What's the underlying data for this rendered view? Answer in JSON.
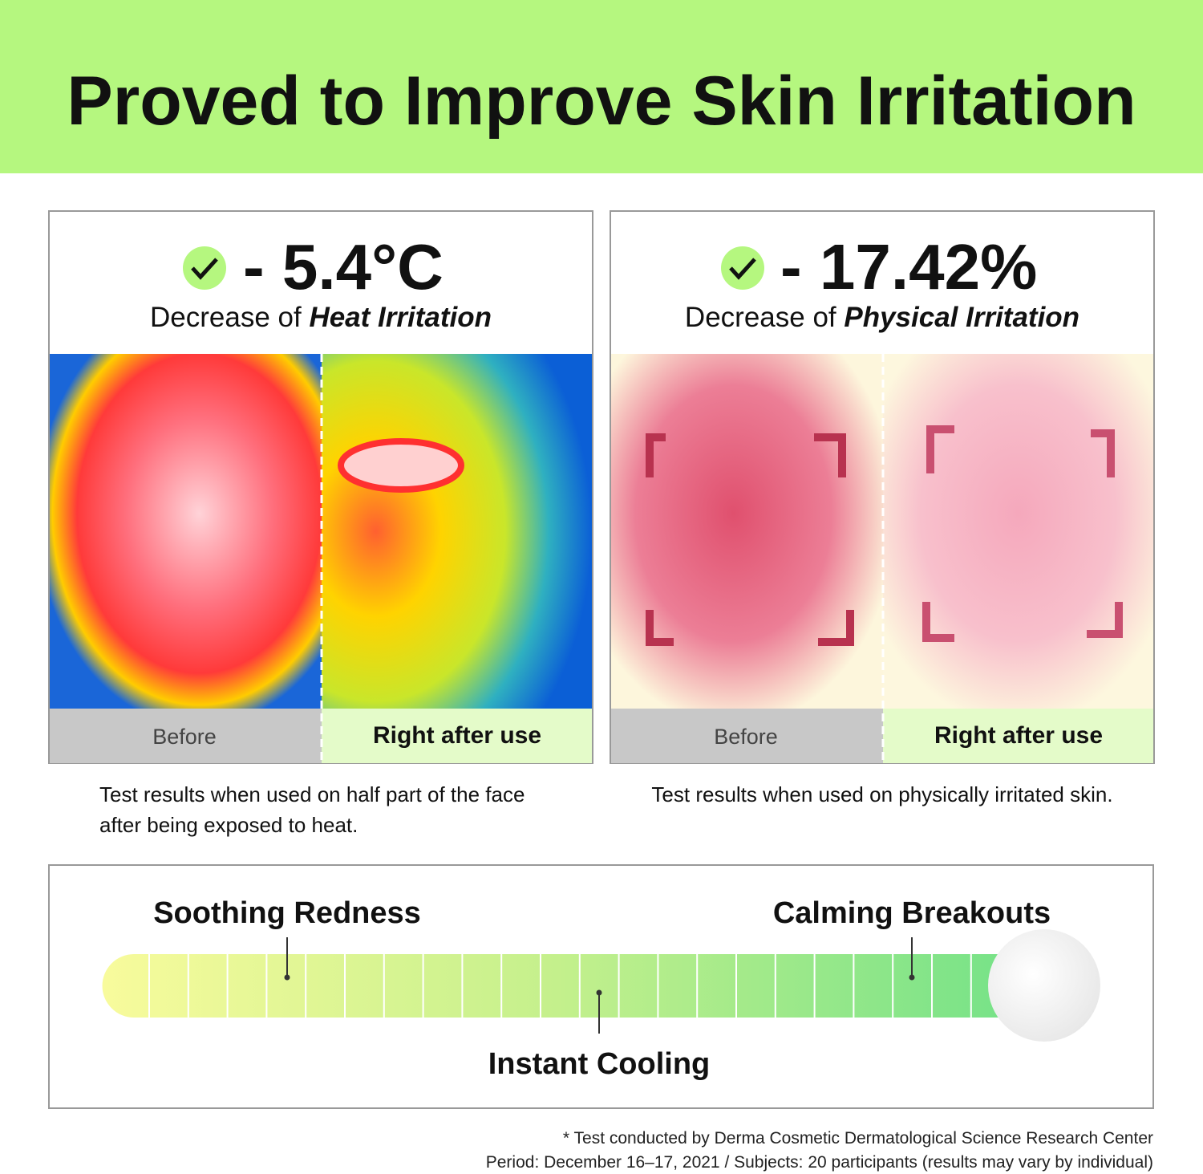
{
  "header": {
    "title": "Proved to Improve Skin Irritation"
  },
  "panels": [
    {
      "stat": "- 5.4°C",
      "caption_prefix": "Decrease of ",
      "caption_emphasis": "Heat Irritation",
      "before": "Before",
      "after": "Right after use",
      "note": [
        "Test results when used on half part of the face",
        "after being exposed to heat."
      ]
    },
    {
      "stat": "- 17.42%",
      "caption_prefix": "Decrease of ",
      "caption_emphasis": "Physical Irritation",
      "before": "Before",
      "after": "Right after use",
      "note": [
        "Test results when used on physically irritated skin."
      ]
    }
  ],
  "scale": {
    "labels": [
      "Soothing Redness",
      "Calming Breakouts",
      "Instant Cooling"
    ]
  },
  "footnote": [
    "* Test conducted by Derma Cosmetic Dermatological Science Research Center",
    "Period: December 16–17, 2021 / Subjects: 20 participants (results may vary by individual)"
  ]
}
